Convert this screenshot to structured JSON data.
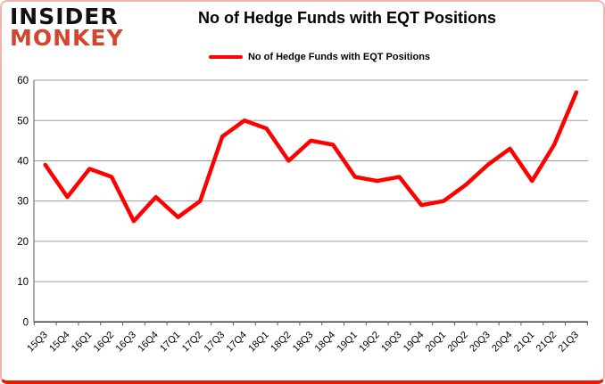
{
  "logo": {
    "line1": "INSIDER",
    "line2": "MONKEY"
  },
  "header": {
    "title": "No of Hedge Funds with EQT Positions"
  },
  "legend": {
    "label": "No of Hedge Funds with EQT Positions",
    "swatch_color": "#ff0000"
  },
  "chart_data": {
    "type": "line",
    "title": "No of Hedge Funds with EQT Positions",
    "xlabel": "",
    "ylabel": "",
    "categories": [
      "15Q3",
      "15Q4",
      "16Q1",
      "16Q2",
      "16Q3",
      "16Q4",
      "17Q1",
      "17Q2",
      "17Q3",
      "17Q4",
      "18Q1",
      "18Q2",
      "18Q3",
      "18Q4",
      "19Q1",
      "19Q2",
      "19Q3",
      "19Q4",
      "20Q1",
      "20Q2",
      "20Q3",
      "20Q4",
      "21Q1",
      "21Q2",
      "21Q3"
    ],
    "series": [
      {
        "name": "No of Hedge Funds with EQT Positions",
        "color": "#ff0000",
        "values": [
          39,
          31,
          38,
          36,
          25,
          31,
          26,
          30,
          46,
          50,
          48,
          40,
          45,
          44,
          36,
          35,
          36,
          29,
          30,
          34,
          39,
          43,
          35,
          44,
          57
        ]
      }
    ],
    "ylim": [
      0,
      60
    ],
    "yticks": [
      0,
      10,
      20,
      30,
      40,
      50,
      60
    ],
    "grid": true,
    "legend_position": "top-center",
    "gridline_color": "#a1a1a1",
    "axis_color": "#595959",
    "tick_label_color": "#000000",
    "x_labels_rotated_degrees": 45
  }
}
